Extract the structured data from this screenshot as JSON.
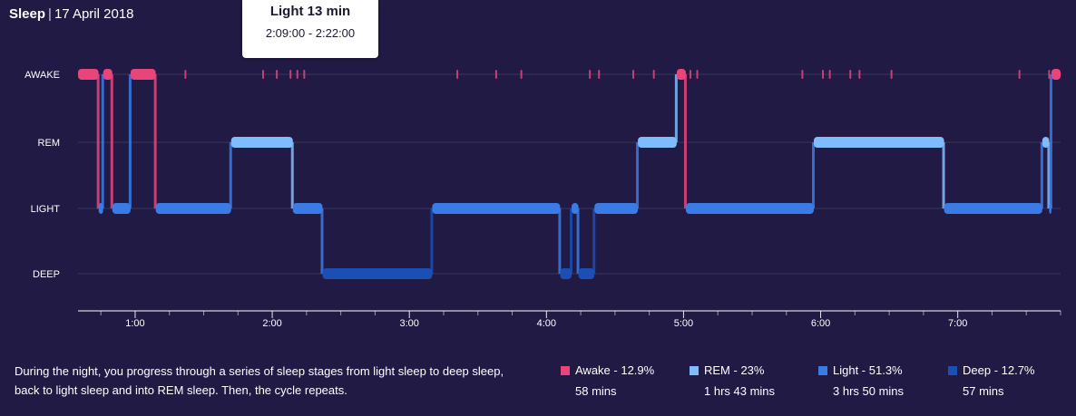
{
  "header": {
    "title": "Sleep",
    "separator": "|",
    "date": "17 April 2018"
  },
  "tooltip": {
    "title": "Light 13 min",
    "range": "2:09:00 - 2:22:00"
  },
  "colors": {
    "awake": "#e8457b",
    "rem": "#7fbcfb",
    "light": "#3b7be6",
    "deep": "#1c4fb3",
    "grid": "#ffffff",
    "background": "#201a44"
  },
  "chart_data": {
    "type": "line",
    "x_axis": {
      "unit": "time of night (hours)",
      "ticks": [
        "1:00",
        "2:00",
        "3:00",
        "4:00",
        "5:00",
        "6:00",
        "7:00"
      ],
      "range": [
        "0:35",
        "7:45"
      ]
    },
    "y_axis": {
      "levels": [
        "AWAKE",
        "REM",
        "LIGHT",
        "DEEP"
      ]
    },
    "segments": [
      {
        "stage": "AWAKE",
        "start": "0:35",
        "end": "0:44"
      },
      {
        "stage": "LIGHT",
        "start": "0:44",
        "end": "0:46"
      },
      {
        "stage": "AWAKE",
        "start": "0:46",
        "end": "0:50"
      },
      {
        "stage": "LIGHT",
        "start": "0:50",
        "end": "0:58"
      },
      {
        "stage": "AWAKE",
        "start": "0:58",
        "end": "1:09"
      },
      {
        "stage": "LIGHT",
        "start": "1:09",
        "end": "1:42"
      },
      {
        "stage": "REM",
        "start": "1:42",
        "end": "2:09"
      },
      {
        "stage": "LIGHT",
        "start": "2:09",
        "end": "2:22"
      },
      {
        "stage": "DEEP",
        "start": "2:22",
        "end": "3:10"
      },
      {
        "stage": "LIGHT",
        "start": "3:10",
        "end": "4:06"
      },
      {
        "stage": "DEEP",
        "start": "4:06",
        "end": "4:11"
      },
      {
        "stage": "LIGHT",
        "start": "4:11",
        "end": "4:14"
      },
      {
        "stage": "DEEP",
        "start": "4:14",
        "end": "4:21"
      },
      {
        "stage": "LIGHT",
        "start": "4:21",
        "end": "4:40"
      },
      {
        "stage": "REM",
        "start": "4:40",
        "end": "4:57"
      },
      {
        "stage": "AWAKE",
        "start": "4:57",
        "end": "5:01"
      },
      {
        "stage": "LIGHT",
        "start": "5:01",
        "end": "5:57"
      },
      {
        "stage": "REM",
        "start": "5:57",
        "end": "6:54"
      },
      {
        "stage": "LIGHT",
        "start": "6:54",
        "end": "7:37"
      },
      {
        "stage": "REM",
        "start": "7:37",
        "end": "7:40"
      },
      {
        "stage": "LIGHT",
        "start": "7:40",
        "end": "7:41"
      },
      {
        "stage": "AWAKE",
        "start": "7:41",
        "end": "7:45"
      }
    ],
    "brief_awakenings": [
      "1:04",
      "1:22",
      "1:56",
      "2:02",
      "2:08",
      "2:11",
      "2:14",
      "3:21",
      "3:38",
      "3:49",
      "4:19",
      "4:23",
      "4:38",
      "4:47",
      "5:03",
      "5:06",
      "5:52",
      "6:01",
      "6:04",
      "6:13",
      "6:17",
      "6:31",
      "7:27",
      "7:40"
    ]
  },
  "description": "During the night, you progress through a series of sleep stages from light sleep to deep sleep, back to light sleep and into REM sleep. Then, the cycle repeats.",
  "legend": [
    {
      "key": "awake",
      "label": "Awake - 12.9%",
      "duration": "58 mins"
    },
    {
      "key": "rem",
      "label": "REM - 23%",
      "duration": "1 hrs 43 mins"
    },
    {
      "key": "light",
      "label": "Light - 51.3%",
      "duration": "3 hrs 50 mins"
    },
    {
      "key": "deep",
      "label": "Deep - 12.7%",
      "duration": "57 mins"
    }
  ]
}
